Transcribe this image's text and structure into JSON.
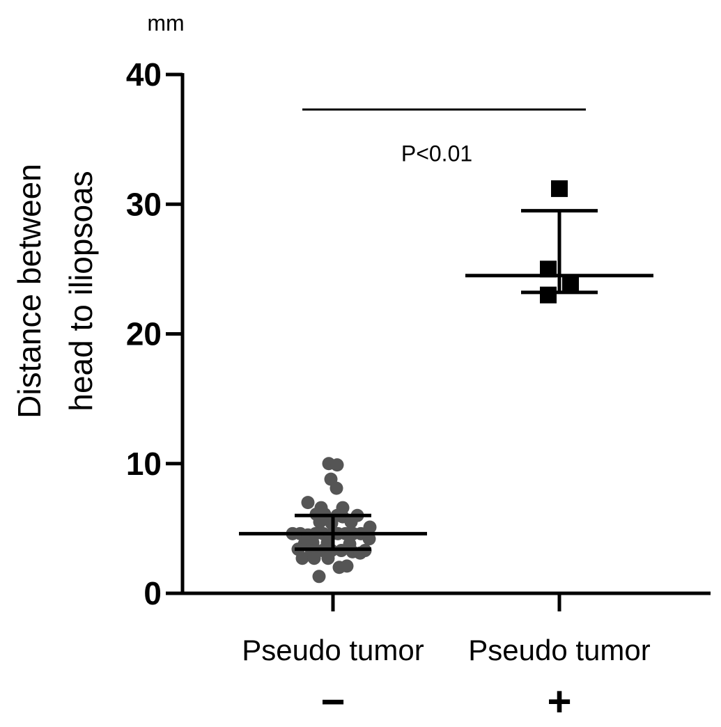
{
  "chart_data": {
    "type": "scatter",
    "unit": "mm",
    "ylabel": [
      "Distance between",
      "head to iliopsoas"
    ],
    "ylim": [
      0,
      40
    ],
    "yticks": [
      0,
      10,
      20,
      30,
      40
    ],
    "categories": [
      {
        "label": "Pseudo tumor",
        "sign": "−"
      },
      {
        "label": "Pseudo tumor",
        "sign": "+"
      }
    ],
    "series": [
      {
        "group": 0,
        "marker": "circle",
        "color": "#555555",
        "mean": 4.6,
        "error": [
          3.4,
          6.0
        ],
        "points": [
          {
            "x": -0.06,
            "y": 10.0
          },
          {
            "x": 0.06,
            "y": 9.9
          },
          {
            "x": -0.03,
            "y": 8.8
          },
          {
            "x": 0.05,
            "y": 8.1
          },
          {
            "x": -0.36,
            "y": 7.0
          },
          {
            "x": -0.17,
            "y": 6.6
          },
          {
            "x": 0.14,
            "y": 6.6
          },
          {
            "x": -0.24,
            "y": 6.1
          },
          {
            "x": -0.12,
            "y": 6.1
          },
          {
            "x": 0.06,
            "y": 6.0
          },
          {
            "x": 0.14,
            "y": 5.9
          },
          {
            "x": 0.35,
            "y": 6.0
          },
          {
            "x": -0.19,
            "y": 5.5
          },
          {
            "x": -0.02,
            "y": 5.4
          },
          {
            "x": 0.26,
            "y": 5.5
          },
          {
            "x": 0.53,
            "y": 5.1
          },
          {
            "x": -0.58,
            "y": 4.6
          },
          {
            "x": -0.47,
            "y": 4.6
          },
          {
            "x": -0.36,
            "y": 4.5
          },
          {
            "x": -0.25,
            "y": 4.6
          },
          {
            "x": -0.14,
            "y": 4.6
          },
          {
            "x": -0.04,
            "y": 4.5
          },
          {
            "x": 0.07,
            "y": 4.6
          },
          {
            "x": 0.18,
            "y": 4.6
          },
          {
            "x": 0.29,
            "y": 4.6
          },
          {
            "x": 0.4,
            "y": 4.6
          },
          {
            "x": 0.52,
            "y": 4.2
          },
          {
            "x": -0.41,
            "y": 3.8
          },
          {
            "x": -0.29,
            "y": 3.9
          },
          {
            "x": -0.08,
            "y": 3.9
          },
          {
            "x": 0.24,
            "y": 3.8
          },
          {
            "x": -0.5,
            "y": 3.4
          },
          {
            "x": -0.31,
            "y": 3.3
          },
          {
            "x": -0.15,
            "y": 3.3
          },
          {
            "x": -0.02,
            "y": 3.3
          },
          {
            "x": 0.12,
            "y": 3.3
          },
          {
            "x": 0.28,
            "y": 3.2
          },
          {
            "x": 0.39,
            "y": 3.1
          },
          {
            "x": 0.46,
            "y": 3.3
          },
          {
            "x": -0.44,
            "y": 2.7
          },
          {
            "x": -0.27,
            "y": 2.7
          },
          {
            "x": -0.07,
            "y": 2.7
          },
          {
            "x": 0.09,
            "y": 2.0
          },
          {
            "x": 0.2,
            "y": 2.1
          },
          {
            "x": -0.2,
            "y": 1.3
          }
        ]
      },
      {
        "group": 1,
        "marker": "square",
        "color": "#000000",
        "mean": 24.5,
        "error": [
          23.2,
          29.5
        ],
        "points": [
          {
            "x": 0.0,
            "y": 31.2
          },
          {
            "x": -0.16,
            "y": 25.0
          },
          {
            "x": 0.16,
            "y": 23.8
          },
          {
            "x": -0.16,
            "y": 23.0
          }
        ]
      }
    ],
    "annotations": {
      "significance": {
        "text": "P<0.01",
        "y": 37.3
      }
    }
  }
}
